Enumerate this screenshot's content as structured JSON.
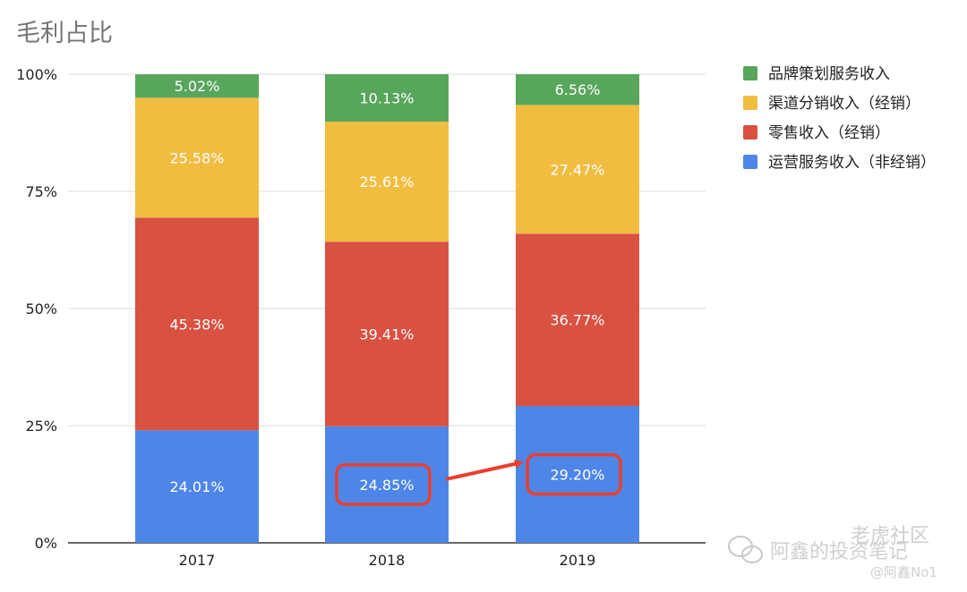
{
  "chart_data": {
    "type": "bar",
    "stacked": true,
    "percent": true,
    "title": "毛利占比",
    "categories": [
      "2017",
      "2018",
      "2019"
    ],
    "y_ticks": [
      "0%",
      "25%",
      "50%",
      "75%",
      "100%"
    ],
    "ylim": [
      0,
      100
    ],
    "grid": true,
    "legend_position": "right",
    "series": [
      {
        "name": "运营服务收入（非经销）",
        "color": "#4e86e7",
        "values": [
          24.01,
          24.85,
          29.2
        ],
        "labels": [
          "24.01%",
          "24.85%",
          "29.20%"
        ]
      },
      {
        "name": "零售收入（经销）",
        "color": "#d85141",
        "values": [
          45.38,
          39.41,
          36.77
        ],
        "labels": [
          "45.38%",
          "39.41%",
          "36.77%"
        ]
      },
      {
        "name": "渠道分销收入（经销）",
        "color": "#f1bd41",
        "values": [
          25.58,
          25.61,
          27.47
        ],
        "labels": [
          "25.58%",
          "25.61%",
          "27.47%"
        ]
      },
      {
        "name": "品牌策划服务收入",
        "color": "#58a55c",
        "values": [
          5.02,
          10.13,
          6.56
        ],
        "labels": [
          "5.02%",
          "10.13%",
          "6.56%"
        ]
      }
    ],
    "highlight": {
      "series": "运营服务收入（非经销）",
      "from_category": "2018",
      "to_category": "2019",
      "color": "#e8402f"
    }
  },
  "watermark": {
    "line1": "阿鑫的投资笔记",
    "line2": "@阿鑫No1",
    "line3": "老虎社区"
  }
}
